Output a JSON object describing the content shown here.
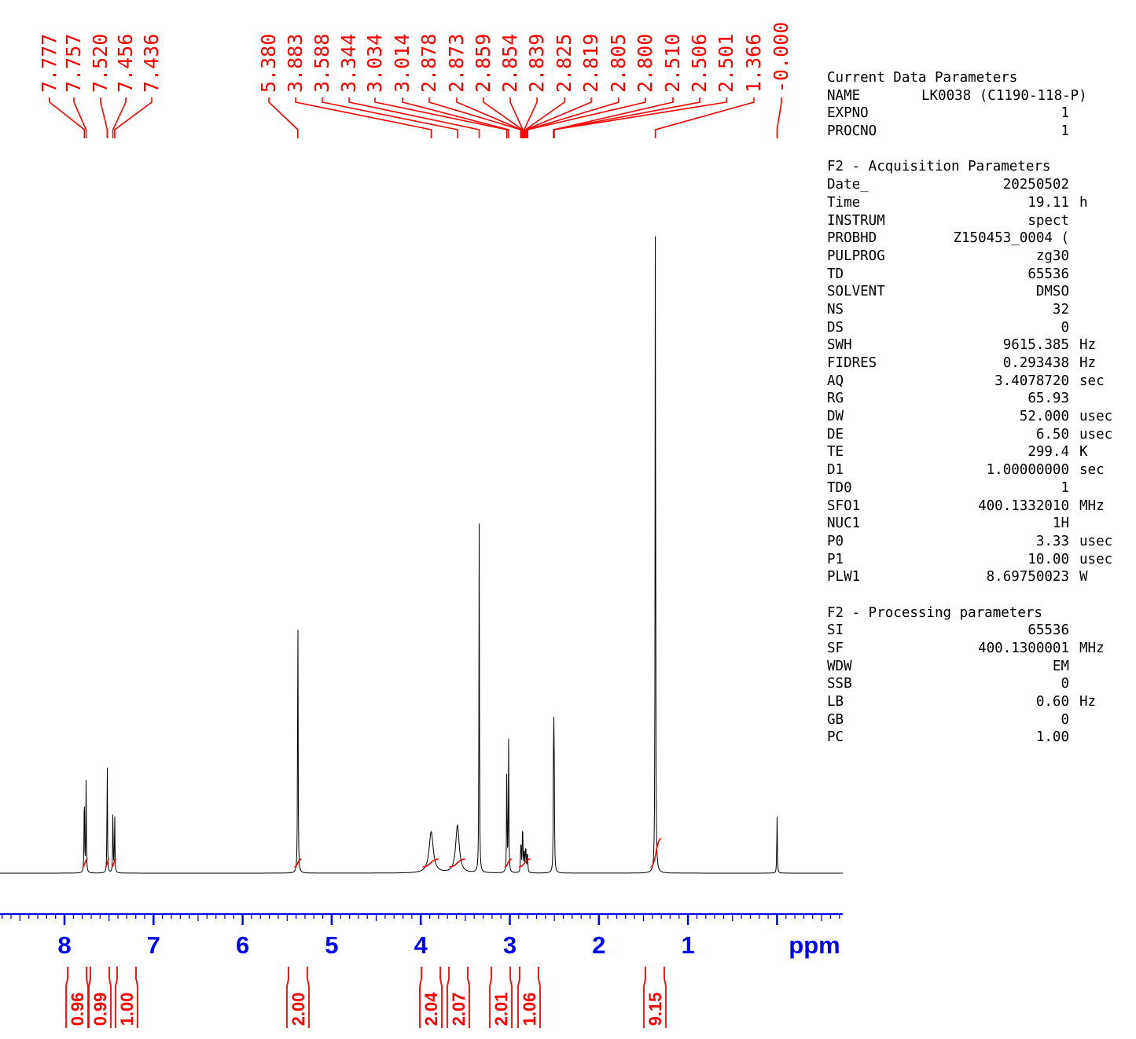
{
  "chart_data": {
    "type": "line",
    "title": "",
    "xlabel": "ppm",
    "ylabel": "",
    "x_reversed": true,
    "xlim": [
      8.7,
      -0.72
    ],
    "x_ticks": [
      "8",
      "7",
      "6",
      "5",
      "4",
      "3",
      "2",
      "1"
    ],
    "x_unit_label": "ppm",
    "grid": false,
    "peaks": [
      {
        "ppm": 7.777,
        "height": 0.125
      },
      {
        "ppm": 7.757,
        "height": 0.127
      },
      {
        "ppm": 7.52,
        "height": 0.161
      },
      {
        "ppm": 7.456,
        "height": 0.09
      },
      {
        "ppm": 7.436,
        "height": 0.082
      },
      {
        "ppm": 5.38,
        "height": 0.398
      },
      {
        "ppm": 3.883,
        "height": 0.057
      },
      {
        "ppm": 3.588,
        "height": 0.066
      },
      {
        "ppm": 3.344,
        "height": 0.486
      },
      {
        "ppm": 3.034,
        "height": 0.155
      },
      {
        "ppm": 3.014,
        "height": 0.193
      },
      {
        "ppm": 2.878,
        "height": 0.028
      },
      {
        "ppm": 2.873,
        "height": 0.03
      },
      {
        "ppm": 2.859,
        "height": 0.042
      },
      {
        "ppm": 2.854,
        "height": 0.04
      },
      {
        "ppm": 2.839,
        "height": 0.036
      },
      {
        "ppm": 2.825,
        "height": 0.027
      },
      {
        "ppm": 2.819,
        "height": 0.024
      },
      {
        "ppm": 2.805,
        "height": 0.02
      },
      {
        "ppm": 2.8,
        "height": 0.018
      },
      {
        "ppm": 2.51,
        "height": 0.106
      },
      {
        "ppm": 2.506,
        "height": 0.146
      },
      {
        "ppm": 2.501,
        "height": 0.107
      },
      {
        "ppm": 1.366,
        "height": 1.0
      },
      {
        "ppm": -0.0,
        "height": 0.084
      }
    ],
    "peak_labels": [
      "7.777",
      "7.757",
      "7.520",
      "7.456",
      "7.436",
      "5.380",
      "3.883",
      "3.588",
      "3.344",
      "3.034",
      "3.014",
      "2.878",
      "2.873",
      "2.859",
      "2.854",
      "2.839",
      "2.825",
      "2.819",
      "2.805",
      "2.800",
      "2.510",
      "2.506",
      "2.501",
      "1.366",
      "-0.000"
    ],
    "integrals": [
      {
        "from": 7.8,
        "to": 7.74,
        "value": "0.96"
      },
      {
        "from": 7.54,
        "to": 7.5,
        "value": "0.99"
      },
      {
        "from": 7.47,
        "to": 7.42,
        "value": "1.00"
      },
      {
        "from": 5.42,
        "to": 5.34,
        "value": "2.00"
      },
      {
        "from": 3.98,
        "to": 3.8,
        "value": "2.04"
      },
      {
        "from": 3.68,
        "to": 3.5,
        "value": "2.07"
      },
      {
        "from": 3.06,
        "to": 2.98,
        "value": "2.01"
      },
      {
        "from": 2.9,
        "to": 2.77,
        "value": "1.06"
      },
      {
        "from": 1.42,
        "to": 1.3,
        "value": "9.15"
      }
    ],
    "colors": {
      "spectrum": "#000000",
      "annotation": "#ff0000",
      "axis": "#0000ff"
    }
  },
  "parameters": {
    "current": {
      "title": "Current Data Parameters",
      "rows": [
        {
          "key": "NAME",
          "value": "LK0038 (C1190-118-P)",
          "unit": ""
        },
        {
          "key": "EXPNO",
          "value": "1",
          "unit": ""
        },
        {
          "key": "PROCNO",
          "value": "1",
          "unit": ""
        }
      ]
    },
    "acquisition": {
      "title": "F2 - Acquisition Parameters",
      "rows": [
        {
          "key": "Date_",
          "value": "20250502",
          "unit": ""
        },
        {
          "key": "Time",
          "value": "19.11",
          "unit": "h"
        },
        {
          "key": "INSTRUM",
          "value": "spect",
          "unit": ""
        },
        {
          "key": "PROBHD",
          "value": "Z150453_0004 (",
          "unit": ""
        },
        {
          "key": "PULPROG",
          "value": "zg30",
          "unit": ""
        },
        {
          "key": "TD",
          "value": "65536",
          "unit": ""
        },
        {
          "key": "SOLVENT",
          "value": "DMSO",
          "unit": ""
        },
        {
          "key": "NS",
          "value": "32",
          "unit": ""
        },
        {
          "key": "DS",
          "value": "0",
          "unit": ""
        },
        {
          "key": "SWH",
          "value": "9615.385",
          "unit": "Hz"
        },
        {
          "key": "FIDRES",
          "value": "0.293438",
          "unit": "Hz"
        },
        {
          "key": "AQ",
          "value": "3.4078720",
          "unit": "sec"
        },
        {
          "key": "RG",
          "value": "65.93",
          "unit": ""
        },
        {
          "key": "DW",
          "value": "52.000",
          "unit": "usec"
        },
        {
          "key": "DE",
          "value": "6.50",
          "unit": "usec"
        },
        {
          "key": "TE",
          "value": "299.4",
          "unit": "K"
        },
        {
          "key": "D1",
          "value": "1.00000000",
          "unit": "sec"
        },
        {
          "key": "TD0",
          "value": "1",
          "unit": ""
        },
        {
          "key": "SFO1",
          "value": "400.1332010",
          "unit": "MHz"
        },
        {
          "key": "NUC1",
          "value": "1H",
          "unit": ""
        },
        {
          "key": "P0",
          "value": "3.33",
          "unit": "usec"
        },
        {
          "key": "P1",
          "value": "10.00",
          "unit": "usec"
        },
        {
          "key": "PLW1",
          "value": "8.69750023",
          "unit": "W"
        }
      ]
    },
    "processing": {
      "title": "F2 - Processing parameters",
      "rows": [
        {
          "key": "SI",
          "value": "65536",
          "unit": ""
        },
        {
          "key": "SF",
          "value": "400.1300001",
          "unit": "MHz"
        },
        {
          "key": "WDW",
          "value": "EM",
          "unit": ""
        },
        {
          "key": "SSB",
          "value": "0",
          "unit": ""
        },
        {
          "key": "LB",
          "value": "0.60",
          "unit": "Hz"
        },
        {
          "key": "GB",
          "value": "0",
          "unit": ""
        },
        {
          "key": "PC",
          "value": "1.00",
          "unit": ""
        }
      ]
    }
  }
}
